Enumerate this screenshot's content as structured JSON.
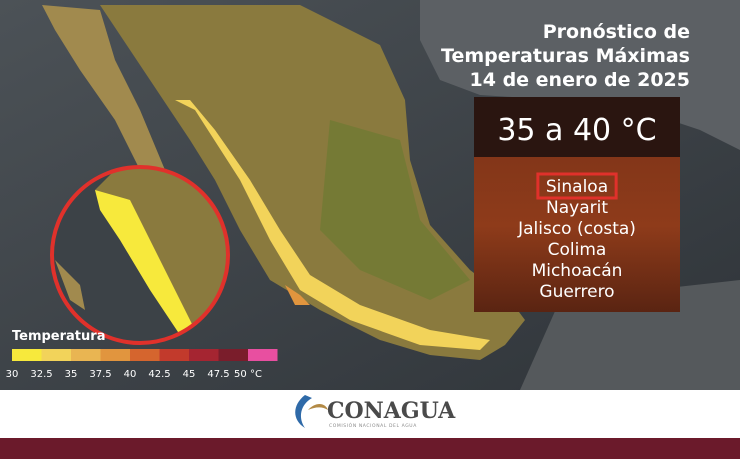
{
  "title": {
    "lines": [
      "Pronóstico de",
      "Temperaturas Máximas",
      "14 de enero de 2025"
    ]
  },
  "forecast": {
    "range": "35 a 40 °C",
    "states": [
      "Sinaloa",
      "Nayarit",
      "Jalisco (costa)",
      "Colima",
      "Michoacán",
      "Guerrero"
    ],
    "highlighted": "Sinaloa"
  },
  "legend": {
    "title": "Temperatura",
    "labels": [
      "30",
      "32.5",
      "35",
      "37.5",
      "40",
      "42.5",
      "45",
      "47.5",
      "50 °C"
    ],
    "colors": [
      "#f7e93c",
      "#f2d35a",
      "#e9b552",
      "#e1953e",
      "#d5652e",
      "#c23a2c",
      "#a52531",
      "#7a1d2b",
      "#e84fa0"
    ]
  },
  "footer": {
    "brand": "CONAGUA",
    "subtitle": "COMISIÓN NACIONAL DEL AGUA"
  }
}
